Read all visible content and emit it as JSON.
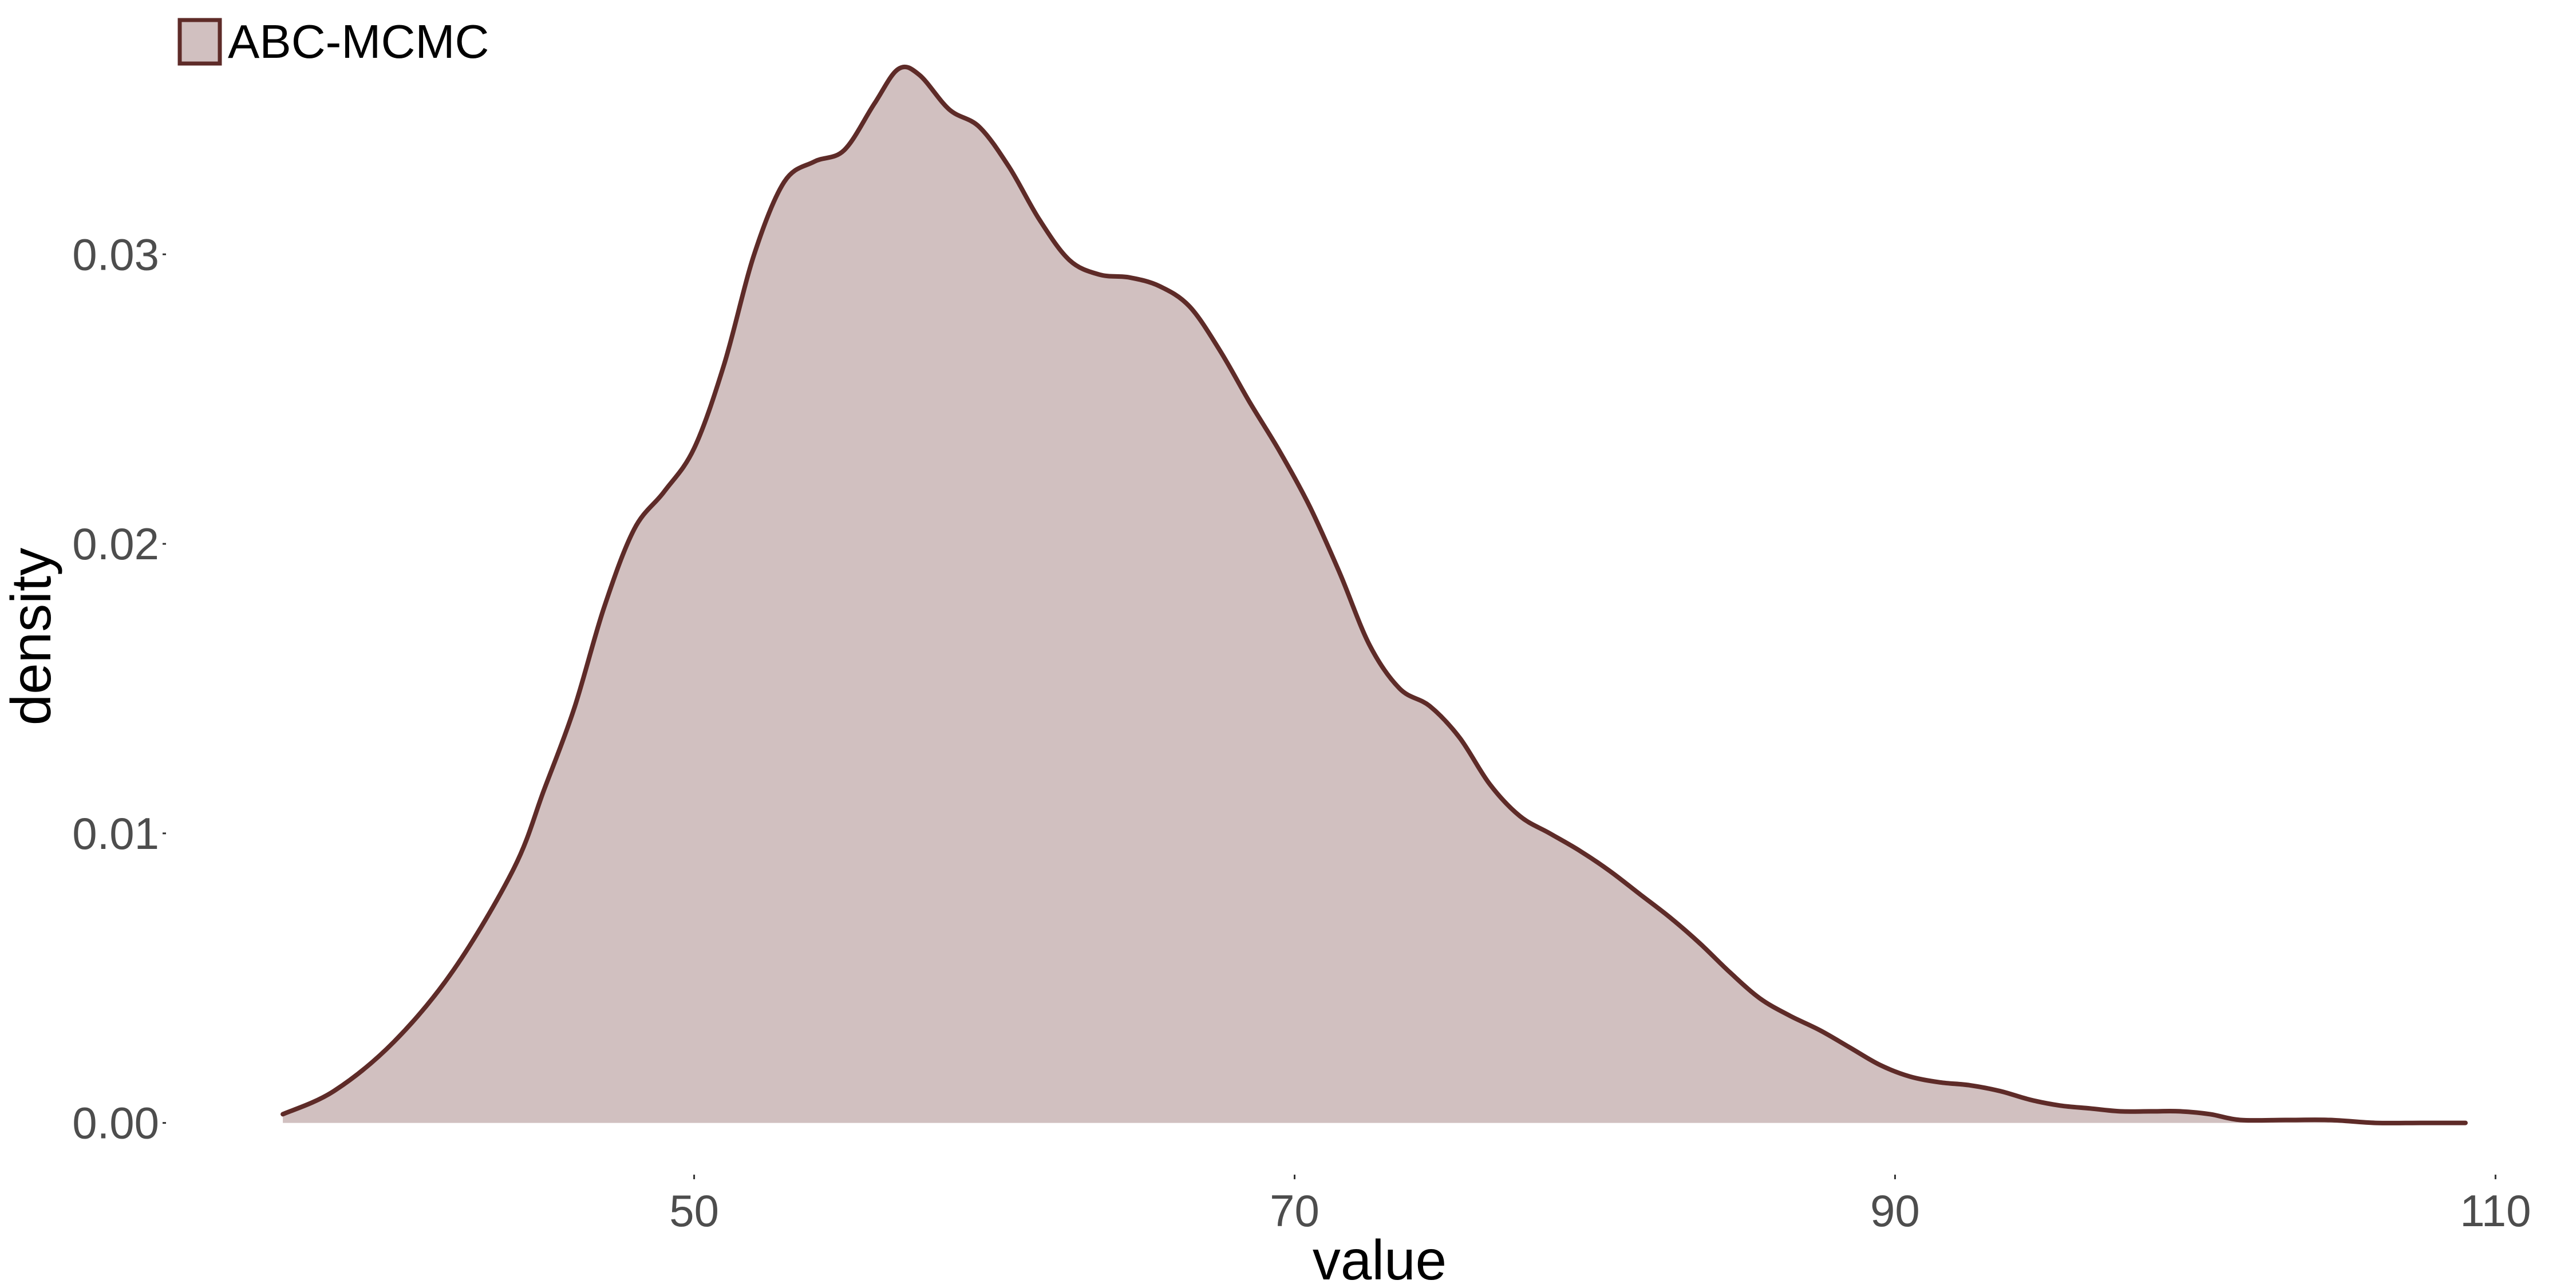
{
  "chart_data": {
    "type": "area",
    "xlabel": "value",
    "ylabel": "density",
    "xlim": [
      32.6,
      112.3
    ],
    "ylim": [
      -0.00155,
      0.0374
    ],
    "x_ticks": [
      {
        "value": 50,
        "label": "50"
      },
      {
        "value": 70,
        "label": "70"
      },
      {
        "value": 90,
        "label": "90"
      },
      {
        "value": 110,
        "label": "110"
      }
    ],
    "y_ticks": [
      {
        "value": 0.0,
        "label": "0.00"
      },
      {
        "value": 0.01,
        "label": "0.01"
      },
      {
        "value": 0.02,
        "label": "0.02"
      },
      {
        "value": 0.03,
        "label": "0.03"
      }
    ],
    "grid": false,
    "legend": {
      "position": "top-left"
    },
    "series": [
      {
        "name": "ABC-MCMC",
        "fill": "#d1c0c0",
        "line": "#5e2b28",
        "points": [
          [
            36.3,
            0.0003
          ],
          [
            38.0,
            0.0011
          ],
          [
            40.0,
            0.0028
          ],
          [
            42.0,
            0.0053
          ],
          [
            44.0,
            0.0088
          ],
          [
            45.0,
            0.0115
          ],
          [
            46.0,
            0.0143
          ],
          [
            47.0,
            0.0178
          ],
          [
            48.0,
            0.0205
          ],
          [
            49.0,
            0.0218
          ],
          [
            50.0,
            0.0233
          ],
          [
            51.0,
            0.0262
          ],
          [
            52.0,
            0.03
          ],
          [
            53.0,
            0.0325
          ],
          [
            54.0,
            0.0332
          ],
          [
            55.0,
            0.0336
          ],
          [
            56.0,
            0.0352
          ],
          [
            56.8,
            0.0364
          ],
          [
            57.5,
            0.0362
          ],
          [
            58.5,
            0.035
          ],
          [
            59.5,
            0.0344
          ],
          [
            60.5,
            0.033
          ],
          [
            61.5,
            0.0312
          ],
          [
            62.5,
            0.0298
          ],
          [
            63.5,
            0.0293
          ],
          [
            64.5,
            0.0292
          ],
          [
            65.5,
            0.0289
          ],
          [
            66.5,
            0.0282
          ],
          [
            67.5,
            0.0267
          ],
          [
            68.5,
            0.0249
          ],
          [
            69.5,
            0.0232
          ],
          [
            70.5,
            0.0213
          ],
          [
            71.5,
            0.019
          ],
          [
            72.5,
            0.0165
          ],
          [
            73.5,
            0.015
          ],
          [
            74.5,
            0.0144
          ],
          [
            75.5,
            0.0133
          ],
          [
            76.5,
            0.0117
          ],
          [
            77.5,
            0.0106
          ],
          [
            78.5,
            0.01
          ],
          [
            79.5,
            0.0094
          ],
          [
            80.5,
            0.0087
          ],
          [
            81.5,
            0.0079
          ],
          [
            82.5,
            0.0071
          ],
          [
            83.5,
            0.0062
          ],
          [
            84.5,
            0.0052
          ],
          [
            85.5,
            0.0043
          ],
          [
            86.5,
            0.0037
          ],
          [
            87.5,
            0.0032
          ],
          [
            88.5,
            0.0026
          ],
          [
            89.5,
            0.002
          ],
          [
            90.5,
            0.0016
          ],
          [
            91.5,
            0.0014
          ],
          [
            92.5,
            0.0013
          ],
          [
            93.5,
            0.0011
          ],
          [
            94.5,
            0.0008
          ],
          [
            95.5,
            0.0006
          ],
          [
            96.5,
            0.0005
          ],
          [
            97.5,
            0.0004
          ],
          [
            98.5,
            0.0004
          ],
          [
            99.5,
            0.0004
          ],
          [
            100.5,
            0.0003
          ],
          [
            101.5,
            0.0001
          ],
          [
            103.0,
            0.0001
          ],
          [
            104.5,
            0.0001
          ],
          [
            106.0,
            0.0
          ],
          [
            107.5,
            0.0
          ],
          [
            109.0,
            0.0
          ]
        ]
      }
    ]
  }
}
